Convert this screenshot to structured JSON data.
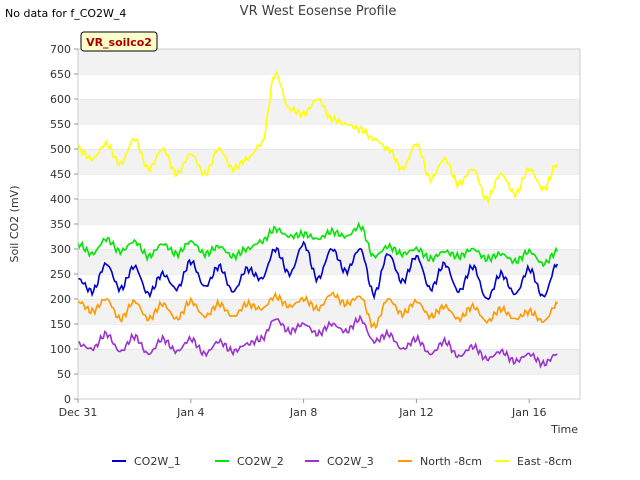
{
  "note": "No data for f_CO2W_4",
  "chart_data": {
    "type": "line",
    "title": "VR West Eosense Profile",
    "badge": "VR_soilco2",
    "xlabel": "Time",
    "ylabel": "Soil CO2 (mV)",
    "xlim": [
      0,
      17.8
    ],
    "ylim": [
      0,
      700
    ],
    "yticks": [
      0,
      50,
      100,
      150,
      200,
      250,
      300,
      350,
      400,
      450,
      500,
      550,
      600,
      650,
      700
    ],
    "xticks": [
      {
        "value": 0,
        "label": "Dec 31"
      },
      {
        "value": 4,
        "label": "Jan 4"
      },
      {
        "value": 8,
        "label": "Jan 8"
      },
      {
        "value": 12,
        "label": "Jan 12"
      },
      {
        "value": 16,
        "label": "Jan 16"
      }
    ],
    "grid": "horizontal bands",
    "legend": "bottom",
    "x": [
      0.0,
      0.5,
      1.0,
      1.5,
      2.0,
      2.5,
      3.0,
      3.5,
      4.0,
      4.5,
      5.0,
      5.5,
      6.0,
      6.5,
      7.0,
      7.5,
      8.0,
      8.5,
      9.0,
      9.5,
      10.0,
      10.5,
      11.0,
      11.5,
      12.0,
      12.5,
      13.0,
      13.5,
      14.0,
      14.5,
      15.0,
      15.5,
      16.0,
      16.5,
      17.0
    ],
    "series": [
      {
        "name": "CO2W_1",
        "color": "#0000cc",
        "values": [
          240,
          215,
          270,
          220,
          265,
          210,
          250,
          220,
          275,
          225,
          265,
          215,
          260,
          240,
          300,
          250,
          310,
          240,
          300,
          255,
          300,
          210,
          290,
          235,
          285,
          220,
          270,
          215,
          265,
          200,
          250,
          210,
          260,
          205,
          270
        ]
      },
      {
        "name": "CO2W_2",
        "color": "#00e600",
        "values": [
          310,
          290,
          320,
          295,
          315,
          285,
          310,
          290,
          315,
          290,
          305,
          285,
          300,
          315,
          340,
          325,
          330,
          320,
          335,
          325,
          345,
          285,
          305,
          290,
          300,
          280,
          295,
          285,
          300,
          280,
          290,
          275,
          295,
          270,
          295
        ]
      },
      {
        "name": "CO2W_3",
        "color": "#9933cc",
        "values": [
          110,
          100,
          130,
          95,
          125,
          90,
          120,
          95,
          120,
          90,
          115,
          95,
          110,
          120,
          160,
          135,
          150,
          130,
          150,
          135,
          160,
          115,
          130,
          100,
          120,
          90,
          115,
          85,
          105,
          80,
          95,
          75,
          90,
          70,
          90
        ]
      },
      {
        "name": "North -8cm",
        "color": "#ff9900",
        "values": [
          195,
          175,
          200,
          160,
          195,
          160,
          190,
          160,
          195,
          165,
          190,
          165,
          190,
          180,
          205,
          185,
          200,
          180,
          210,
          190,
          205,
          145,
          200,
          170,
          195,
          165,
          185,
          160,
          185,
          155,
          180,
          160,
          175,
          155,
          190
        ]
      },
      {
        "name": "East -8cm",
        "color": "#ffff00",
        "values": [
          500,
          480,
          510,
          470,
          520,
          460,
          500,
          450,
          490,
          450,
          500,
          460,
          480,
          510,
          650,
          580,
          570,
          600,
          560,
          550,
          540,
          520,
          500,
          460,
          510,
          440,
          480,
          430,
          460,
          400,
          450,
          410,
          460,
          420,
          470
        ]
      }
    ]
  }
}
